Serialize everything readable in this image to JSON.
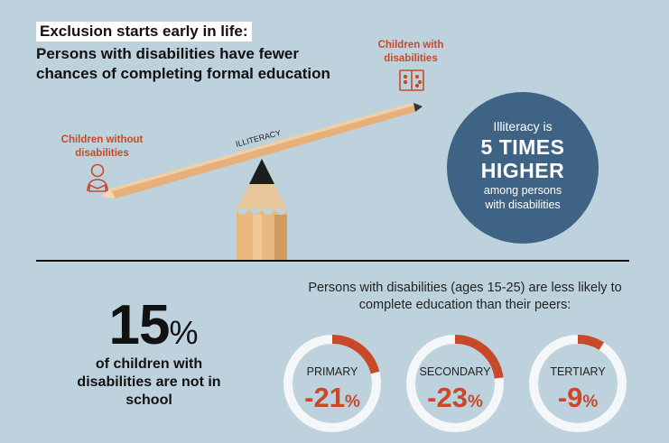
{
  "title": {
    "line1": "Exclusion starts early in life:",
    "line2": "Persons with disabilities have fewer chances of completing formal education"
  },
  "seesaw": {
    "left_label": "Children without disabilities",
    "right_label": "Children with disabilities",
    "beam_label": "ILLITERACY"
  },
  "stat_circle": {
    "line1": "Illiteracy is",
    "line2": "5 TIMES",
    "line3": "HIGHER",
    "line4": "among persons",
    "line5": "with disabilities"
  },
  "out_of_school": {
    "number": "15",
    "symbol": "%",
    "description": "of children with disabilities are not in school"
  },
  "completion": {
    "heading": "Persons with disabilities (ages 15-25) are less likely to complete education than their peers:",
    "rings": [
      {
        "label": "PRIMARY",
        "value": "-21",
        "symbol": "%",
        "fraction": 0.21
      },
      {
        "label": "SECONDARY",
        "value": "-23",
        "symbol": "%",
        "fraction": 0.23
      },
      {
        "label": "TERTIARY",
        "value": "-9",
        "symbol": "%",
        "fraction": 0.09
      }
    ]
  },
  "colors": {
    "background": "#bdd2dd",
    "accent": "#c8492a",
    "circle": "#3f6384",
    "ring_track": "#f4f6f7"
  }
}
